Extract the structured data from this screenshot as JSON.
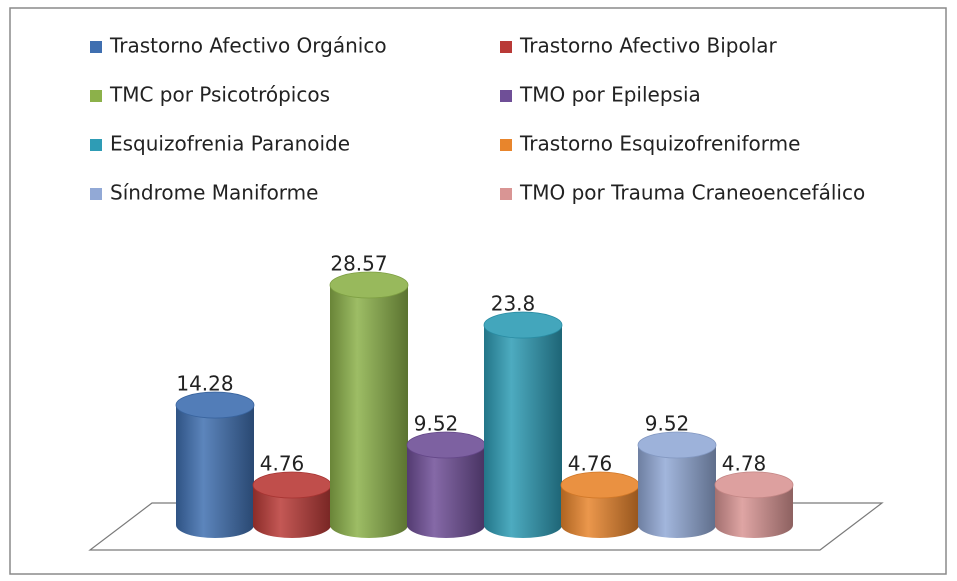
{
  "chart_data": {
    "type": "bar3d",
    "categories": [
      "Trastorno Afectivo Orgánico",
      "Trastorno Afectivo Bipolar",
      "TMC por Psicotrópicos",
      "TMO por Epilepsia",
      "Esquizofrenia Paranoide",
      "Trastorno Esquizofreniforme",
      "Síndrome Maniforme",
      "TMO por Trauma Craneoencefálico"
    ],
    "values": [
      14.28,
      4.76,
      28.57,
      9.52,
      23.8,
      4.76,
      9.52,
      4.78
    ],
    "colors": [
      "#3f6fb0",
      "#b93a37",
      "#8cb14a",
      "#6f4f97",
      "#2e9cb5",
      "#e8852c",
      "#92a9d6",
      "#d99594"
    ],
    "legend": "top"
  }
}
